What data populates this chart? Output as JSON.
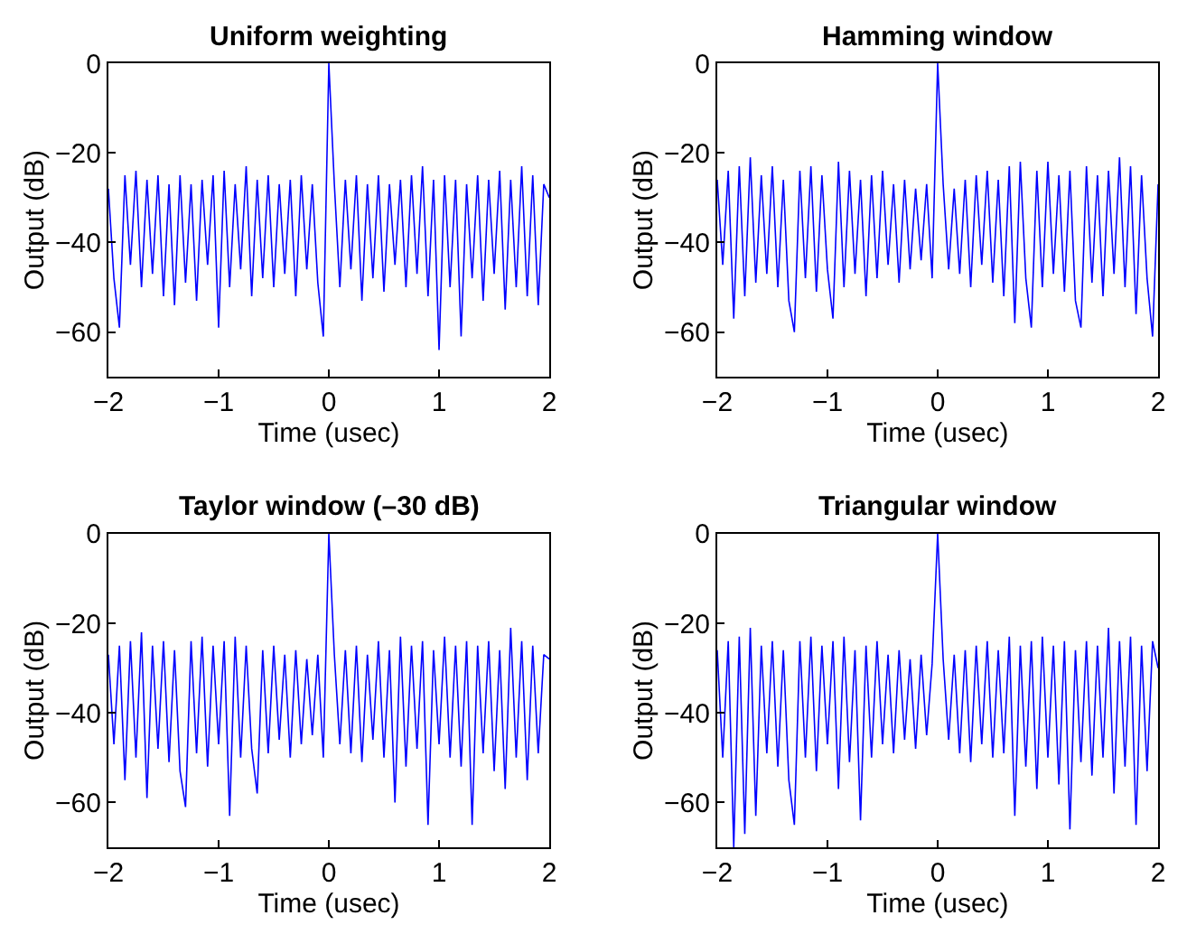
{
  "chart_data": [
    {
      "type": "line",
      "title": "Uniform weighting",
      "xlabel": "Time (usec)",
      "ylabel": "Output (dB)",
      "xlim": [
        -2,
        2
      ],
      "xticks": [
        -2,
        -1,
        0,
        1,
        2
      ],
      "ylim": [
        -70,
        0
      ],
      "yticks": [
        -60,
        -40,
        -20,
        0
      ],
      "marker": "none",
      "line_style": "solid",
      "x": [
        -2,
        -1.95,
        -1.9,
        -1.85,
        -1.8,
        -1.75,
        -1.7,
        -1.65,
        -1.6,
        -1.55,
        -1.5,
        -1.45,
        -1.4,
        -1.35,
        -1.3,
        -1.25,
        -1.2,
        -1.15,
        -1.1,
        -1.05,
        -1,
        -0.95,
        -0.9,
        -0.85,
        -0.8,
        -0.75,
        -0.7,
        -0.65,
        -0.6,
        -0.55,
        -0.5,
        -0.45,
        -0.4,
        -0.35,
        -0.3,
        -0.25,
        -0.2,
        -0.15,
        -0.1,
        -0.05,
        0,
        0.05,
        0.1,
        0.15,
        0.2,
        0.25,
        0.3,
        0.35,
        0.4,
        0.45,
        0.5,
        0.55,
        0.6,
        0.65,
        0.7,
        0.75,
        0.8,
        0.85,
        0.9,
        0.95,
        1,
        1.05,
        1.1,
        1.15,
        1.2,
        1.25,
        1.3,
        1.35,
        1.4,
        1.45,
        1.5,
        1.55,
        1.6,
        1.65,
        1.7,
        1.75,
        1.8,
        1.85,
        1.9,
        1.95,
        2
      ],
      "series": [
        {
          "color": "#0000ff",
          "values": [
            -28,
            -48,
            -59,
            -25,
            -45,
            -24,
            -50,
            -26,
            -47,
            -25,
            -52,
            -27,
            -54,
            -25,
            -49,
            -27,
            -53,
            -26,
            -45,
            -25,
            -59,
            -24,
            -50,
            -27,
            -46,
            -23,
            -52,
            -26,
            -48,
            -25,
            -50,
            -27,
            -47,
            -26,
            -52,
            -25,
            -46,
            -27,
            -49,
            -61,
            0,
            -27,
            -50,
            -26,
            -46,
            -25,
            -53,
            -27,
            -48,
            -25,
            -51,
            -27,
            -45,
            -26,
            -50,
            -25,
            -47,
            -23,
            -52,
            -26,
            -64,
            -25,
            -50,
            -26,
            -61,
            -27,
            -48,
            -25,
            -53,
            -26,
            -47,
            -24,
            -55,
            -26,
            -50,
            -23,
            -52,
            -25,
            -54,
            -27,
            -30
          ]
        }
      ]
    },
    {
      "type": "line",
      "title": "Hamming window",
      "xlabel": "Time (usec)",
      "ylabel": "Output (dB)",
      "xlim": [
        -2,
        2
      ],
      "xticks": [
        -2,
        -1,
        0,
        1,
        2
      ],
      "ylim": [
        -70,
        0
      ],
      "yticks": [
        -60,
        -40,
        -20,
        0
      ],
      "marker": "none",
      "line_style": "solid",
      "x": [
        -2,
        -1.95,
        -1.9,
        -1.85,
        -1.8,
        -1.75,
        -1.7,
        -1.65,
        -1.6,
        -1.55,
        -1.5,
        -1.45,
        -1.4,
        -1.35,
        -1.3,
        -1.25,
        -1.2,
        -1.15,
        -1.1,
        -1.05,
        -1,
        -0.95,
        -0.9,
        -0.85,
        -0.8,
        -0.75,
        -0.7,
        -0.65,
        -0.6,
        -0.55,
        -0.5,
        -0.45,
        -0.4,
        -0.35,
        -0.3,
        -0.25,
        -0.2,
        -0.15,
        -0.1,
        -0.05,
        0,
        0.05,
        0.1,
        0.15,
        0.2,
        0.25,
        0.3,
        0.35,
        0.4,
        0.45,
        0.5,
        0.55,
        0.6,
        0.65,
        0.7,
        0.75,
        0.8,
        0.85,
        0.9,
        0.95,
        1,
        1.05,
        1.1,
        1.15,
        1.2,
        1.25,
        1.3,
        1.35,
        1.4,
        1.45,
        1.5,
        1.55,
        1.6,
        1.65,
        1.7,
        1.75,
        1.8,
        1.85,
        1.9,
        1.95,
        2
      ],
      "series": [
        {
          "color": "#0000ff",
          "values": [
            -26,
            -45,
            -24,
            -57,
            -23,
            -52,
            -21,
            -49,
            -25,
            -47,
            -23,
            -50,
            -26,
            -53,
            -60,
            -24,
            -48,
            -23,
            -51,
            -25,
            -46,
            -57,
            -22,
            -50,
            -24,
            -47,
            -26,
            -52,
            -25,
            -48,
            -24,
            -45,
            -27,
            -49,
            -26,
            -46,
            -28,
            -44,
            -27,
            -48,
            0,
            -27,
            -46,
            -28,
            -47,
            -26,
            -50,
            -25,
            -45,
            -24,
            -49,
            -26,
            -52,
            -23,
            -58,
            -22,
            -48,
            -59,
            -24,
            -50,
            -22,
            -47,
            -25,
            -51,
            -24,
            -53,
            -59,
            -23,
            -49,
            -25,
            -52,
            -24,
            -47,
            -21,
            -50,
            -23,
            -56,
            -25,
            -48,
            -61,
            -27
          ]
        }
      ]
    },
    {
      "type": "line",
      "title": "Taylor window (–30 dB)",
      "xlabel": "Time (usec)",
      "ylabel": "Output (dB)",
      "xlim": [
        -2,
        2
      ],
      "xticks": [
        -2,
        -1,
        0,
        1,
        2
      ],
      "ylim": [
        -70,
        0
      ],
      "yticks": [
        -60,
        -40,
        -20,
        0
      ],
      "marker": "none",
      "line_style": "solid",
      "x": [
        -2,
        -1.95,
        -1.9,
        -1.85,
        -1.8,
        -1.75,
        -1.7,
        -1.65,
        -1.6,
        -1.55,
        -1.5,
        -1.45,
        -1.4,
        -1.35,
        -1.3,
        -1.25,
        -1.2,
        -1.15,
        -1.1,
        -1.05,
        -1,
        -0.95,
        -0.9,
        -0.85,
        -0.8,
        -0.75,
        -0.7,
        -0.65,
        -0.6,
        -0.55,
        -0.5,
        -0.45,
        -0.4,
        -0.35,
        -0.3,
        -0.25,
        -0.2,
        -0.15,
        -0.1,
        -0.05,
        0,
        0.05,
        0.1,
        0.15,
        0.2,
        0.25,
        0.3,
        0.35,
        0.4,
        0.45,
        0.5,
        0.55,
        0.6,
        0.65,
        0.7,
        0.75,
        0.8,
        0.85,
        0.9,
        0.95,
        1,
        1.05,
        1.1,
        1.15,
        1.2,
        1.25,
        1.3,
        1.35,
        1.4,
        1.45,
        1.5,
        1.55,
        1.6,
        1.65,
        1.7,
        1.75,
        1.8,
        1.85,
        1.9,
        1.95,
        2
      ],
      "series": [
        {
          "color": "#0000ff",
          "values": [
            -27,
            -47,
            -25,
            -55,
            -24,
            -50,
            -22,
            -59,
            -25,
            -48,
            -24,
            -51,
            -26,
            -53,
            -61,
            -24,
            -49,
            -23,
            -52,
            -25,
            -47,
            -24,
            -63,
            -23,
            -50,
            -25,
            -48,
            -58,
            -26,
            -49,
            -25,
            -46,
            -27,
            -50,
            -26,
            -47,
            -28,
            -45,
            -27,
            -50,
            0,
            -27,
            -47,
            -26,
            -49,
            -25,
            -51,
            -27,
            -46,
            -24,
            -50,
            -26,
            -60,
            -23,
            -52,
            -25,
            -48,
            -24,
            -65,
            -26,
            -47,
            -23,
            -50,
            -25,
            -52,
            -24,
            -65,
            -25,
            -49,
            -24,
            -53,
            -26,
            -57,
            -21,
            -50,
            -24,
            -55,
            -25,
            -49,
            -27,
            -28
          ]
        }
      ]
    },
    {
      "type": "line",
      "title": "Triangular window",
      "xlabel": "Time (usec)",
      "ylabel": "Output (dB)",
      "xlim": [
        -2,
        2
      ],
      "xticks": [
        -2,
        -1,
        0,
        1,
        2
      ],
      "ylim": [
        -70,
        0
      ],
      "yticks": [
        -60,
        -40,
        -20,
        0
      ],
      "marker": "none",
      "line_style": "solid",
      "x": [
        -2,
        -1.95,
        -1.9,
        -1.85,
        -1.8,
        -1.75,
        -1.7,
        -1.65,
        -1.6,
        -1.55,
        -1.5,
        -1.45,
        -1.4,
        -1.35,
        -1.3,
        -1.25,
        -1.2,
        -1.15,
        -1.1,
        -1.05,
        -1,
        -0.95,
        -0.9,
        -0.85,
        -0.8,
        -0.75,
        -0.7,
        -0.65,
        -0.6,
        -0.55,
        -0.5,
        -0.45,
        -0.4,
        -0.35,
        -0.3,
        -0.25,
        -0.2,
        -0.15,
        -0.1,
        -0.05,
        0,
        0.05,
        0.1,
        0.15,
        0.2,
        0.25,
        0.3,
        0.35,
        0.4,
        0.45,
        0.5,
        0.55,
        0.6,
        0.65,
        0.7,
        0.75,
        0.8,
        0.85,
        0.9,
        0.95,
        1,
        1.05,
        1.1,
        1.15,
        1.2,
        1.25,
        1.3,
        1.35,
        1.4,
        1.45,
        1.5,
        1.55,
        1.6,
        1.65,
        1.7,
        1.75,
        1.8,
        1.85,
        1.9,
        1.95,
        2
      ],
      "series": [
        {
          "color": "#0000ff",
          "values": [
            -26,
            -50,
            -24,
            -70,
            -23,
            -67,
            -21,
            -63,
            -25,
            -49,
            -24,
            -52,
            -26,
            -55,
            -65,
            -24,
            -50,
            -23,
            -53,
            -25,
            -47,
            -24,
            -57,
            -23,
            -51,
            -26,
            -64,
            -25,
            -50,
            -24,
            -47,
            -27,
            -49,
            -26,
            -46,
            -28,
            -48,
            -27,
            -45,
            -29,
            0,
            -28,
            -46,
            -27,
            -49,
            -26,
            -51,
            -25,
            -47,
            -24,
            -50,
            -26,
            -49,
            -23,
            -63,
            -25,
            -52,
            -24,
            -57,
            -23,
            -50,
            -25,
            -56,
            -24,
            -66,
            -26,
            -51,
            -24,
            -54,
            -25,
            -50,
            -21,
            -58,
            -24,
            -52,
            -23,
            -65,
            -25,
            -53,
            -24,
            -30
          ]
        }
      ]
    }
  ]
}
